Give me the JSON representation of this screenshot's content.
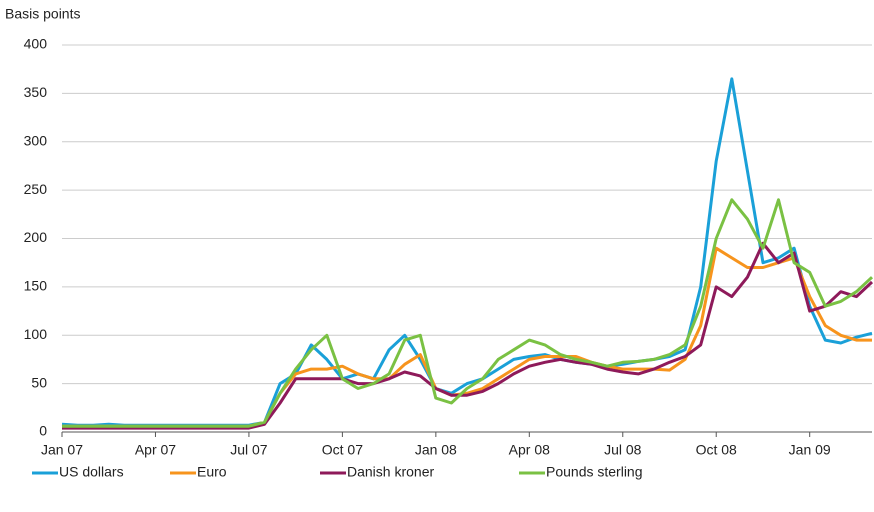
{
  "chart_data": {
    "type": "line",
    "ylabel": "Basis points",
    "categories": [
      "Jan 07",
      null,
      null,
      null,
      null,
      null,
      "Apr 07",
      null,
      null,
      null,
      null,
      null,
      "Jul 07",
      null,
      null,
      null,
      null,
      null,
      "Oct 07",
      null,
      null,
      null,
      null,
      null,
      "Jan 08",
      null,
      null,
      null,
      null,
      null,
      "Apr 08",
      null,
      null,
      null,
      null,
      null,
      "Jul 08",
      null,
      null,
      null,
      null,
      null,
      "Oct 08",
      null,
      null,
      null,
      null,
      null,
      "Jan 09",
      null,
      null,
      null,
      null
    ],
    "series": [
      {
        "name": "US dollars",
        "color": "#1aa0d8",
        "values": [
          8,
          7,
          7,
          8,
          7,
          7,
          7,
          7,
          7,
          7,
          7,
          7,
          7,
          10,
          50,
          60,
          90,
          75,
          55,
          60,
          55,
          85,
          100,
          75,
          45,
          40,
          50,
          55,
          65,
          75,
          78,
          80,
          75,
          72,
          70,
          68,
          70,
          73,
          75,
          78,
          85,
          150,
          280,
          365,
          270,
          175,
          180,
          190,
          130,
          95,
          92,
          98,
          102
        ]
      },
      {
        "name": "Euro",
        "color": "#f7941d",
        "values": [
          6,
          6,
          6,
          6,
          6,
          6,
          6,
          6,
          6,
          6,
          6,
          6,
          6,
          10,
          40,
          60,
          65,
          65,
          68,
          60,
          55,
          55,
          70,
          80,
          45,
          38,
          40,
          45,
          55,
          65,
          75,
          78,
          78,
          78,
          72,
          68,
          65,
          65,
          65,
          64,
          75,
          110,
          190,
          180,
          170,
          170,
          175,
          180,
          140,
          110,
          100,
          95,
          95
        ]
      },
      {
        "name": "Danish kroner",
        "color": "#8e1a5a",
        "values": [
          4,
          4,
          4,
          4,
          4,
          4,
          4,
          4,
          4,
          4,
          4,
          4,
          4,
          8,
          30,
          55,
          55,
          55,
          55,
          50,
          50,
          55,
          62,
          58,
          45,
          38,
          38,
          42,
          50,
          60,
          68,
          72,
          75,
          72,
          70,
          65,
          62,
          60,
          65,
          72,
          78,
          90,
          150,
          140,
          160,
          195,
          175,
          185,
          125,
          130,
          145,
          140,
          155
        ]
      },
      {
        "name": "Pounds sterling",
        "color": "#7ac143",
        "values": [
          6,
          6,
          6,
          6,
          6,
          6,
          6,
          6,
          6,
          6,
          6,
          6,
          6,
          10,
          40,
          65,
          85,
          100,
          55,
          45,
          50,
          60,
          95,
          100,
          35,
          30,
          45,
          55,
          75,
          85,
          95,
          90,
          80,
          75,
          72,
          68,
          72,
          73,
          75,
          80,
          90,
          130,
          200,
          240,
          220,
          190,
          240,
          175,
          165,
          130,
          135,
          145,
          160
        ]
      }
    ],
    "ylim": [
      0,
      400
    ],
    "yticks": [
      0,
      50,
      100,
      150,
      200,
      250,
      300,
      350,
      400
    ],
    "grid": true,
    "legend": "bottom"
  }
}
